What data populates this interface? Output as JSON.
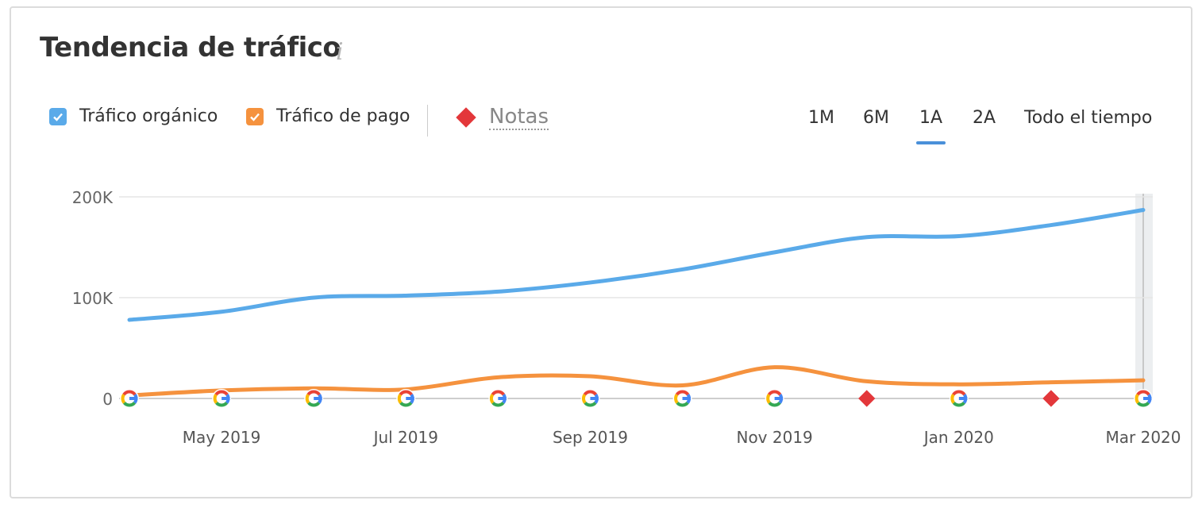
{
  "header": {
    "title": "Tendencia de tráfico",
    "info_icon": "i"
  },
  "legend": {
    "organic_label": "Tráfico orgánico",
    "paid_label": "Tráfico de pago",
    "notes_label": "Notas"
  },
  "ranges": [
    {
      "label": "1M",
      "active": false
    },
    {
      "label": "6M",
      "active": false
    },
    {
      "label": "1A",
      "active": true
    },
    {
      "label": "2A",
      "active": false
    },
    {
      "label": "Todo el tiempo",
      "active": false
    }
  ],
  "colors": {
    "organic": "#5aaae9",
    "paid": "#f5923e",
    "note": "#e3373a",
    "grid": "#e5e5e5",
    "active_tab": "#4a90d9"
  },
  "chart_data": {
    "type": "line",
    "title": "Tendencia de tráfico",
    "ylim": [
      0,
      200000
    ],
    "y_ticks": [
      {
        "value": 0,
        "label": "0"
      },
      {
        "value": 100000,
        "label": "100K"
      },
      {
        "value": 200000,
        "label": "200K"
      }
    ],
    "x": [
      "2019-04",
      "2019-05",
      "2019-06",
      "2019-07",
      "2019-08",
      "2019-09",
      "2019-10",
      "2019-11",
      "2019-12",
      "2020-01",
      "2020-02",
      "2020-03"
    ],
    "x_tick_labels": [
      {
        "index": 1,
        "label": "May 2019"
      },
      {
        "index": 3,
        "label": "Jul 2019"
      },
      {
        "index": 5,
        "label": "Sep 2019"
      },
      {
        "index": 7,
        "label": "Nov 2019"
      },
      {
        "index": 9,
        "label": "Jan 2020"
      },
      {
        "index": 11,
        "label": "Mar 2020"
      }
    ],
    "series": [
      {
        "name": "Tráfico orgánico",
        "color": "#5aaae9",
        "values": [
          78000,
          86000,
          100000,
          102000,
          106000,
          115000,
          128000,
          145000,
          160000,
          161000,
          172000,
          187000
        ]
      },
      {
        "name": "Tráfico de pago",
        "color": "#f5923e",
        "values": [
          3000,
          8000,
          10000,
          9000,
          21000,
          22000,
          13000,
          31000,
          17000,
          14000,
          16000,
          18000
        ]
      }
    ],
    "markers": [
      {
        "type": "google",
        "index": 0
      },
      {
        "type": "google",
        "index": 1
      },
      {
        "type": "google",
        "index": 2
      },
      {
        "type": "google",
        "index": 3
      },
      {
        "type": "google",
        "index": 4
      },
      {
        "type": "google",
        "index": 5
      },
      {
        "type": "google",
        "index": 6
      },
      {
        "type": "google",
        "index": 7
      },
      {
        "type": "note",
        "index": 8
      },
      {
        "type": "google",
        "index": 9
      },
      {
        "type": "note",
        "index": 10
      },
      {
        "type": "google",
        "index": 11
      }
    ],
    "hover_index": 11
  }
}
